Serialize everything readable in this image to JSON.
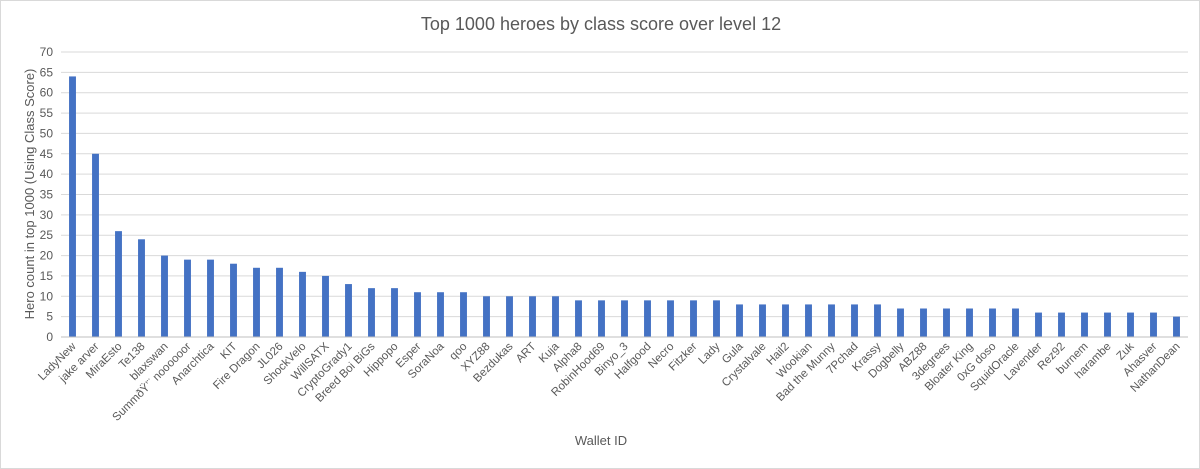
{
  "chart_data": {
    "type": "bar",
    "title": "Top 1000 heroes by class score over level 12",
    "xlabel": "Wallet ID",
    "ylabel": "Hero count in top 1000 (Using Class Score)",
    "ylim": [
      0,
      70
    ],
    "yticks": [
      0,
      5,
      10,
      15,
      20,
      25,
      30,
      35,
      40,
      45,
      50,
      55,
      60,
      65,
      70
    ],
    "grid": true,
    "bar_color": "#4472c4",
    "categories": [
      "LadyNew",
      "jake arver",
      "MiraEsto",
      "Te138",
      "blaxswan",
      "SummðŸ’¨ noooooor",
      "Anarchtica",
      "KIT",
      "Fire Dragon",
      "JL026",
      "ShockVelo",
      "WillSATX",
      "CryptoGrady1",
      "Breed Boi BiGs",
      "Hippopo",
      "Esper",
      "SoraNoa",
      "qoo",
      "XYZ88",
      "Bezdukas",
      "ART",
      "Kuja",
      "Alpha8",
      "RobinHood69",
      "Binyo_3",
      "Halfgood",
      "Necro",
      "Fitzker",
      "Lady",
      "Gula",
      "Crystalvale",
      "Hail2",
      "Wookian",
      "Bad the Munny",
      "7Pchad",
      "Krassy",
      "Dogbelly",
      "ABZ88",
      "3degrees",
      "Bloater King",
      "0xG doso",
      "SquidOracle",
      "Lavender",
      "Rez92",
      "burnem",
      "harambe",
      "Zuk",
      "Ahasver",
      "NathanDean"
    ],
    "values": [
      64,
      45,
      26,
      24,
      20,
      19,
      19,
      18,
      17,
      17,
      16,
      15,
      13,
      12,
      12,
      11,
      11,
      11,
      10,
      10,
      10,
      10,
      9,
      9,
      9,
      9,
      9,
      9,
      9,
      8,
      8,
      8,
      8,
      8,
      8,
      8,
      7,
      7,
      7,
      7,
      7,
      7,
      6,
      6,
      6,
      6,
      6,
      6,
      5
    ]
  }
}
